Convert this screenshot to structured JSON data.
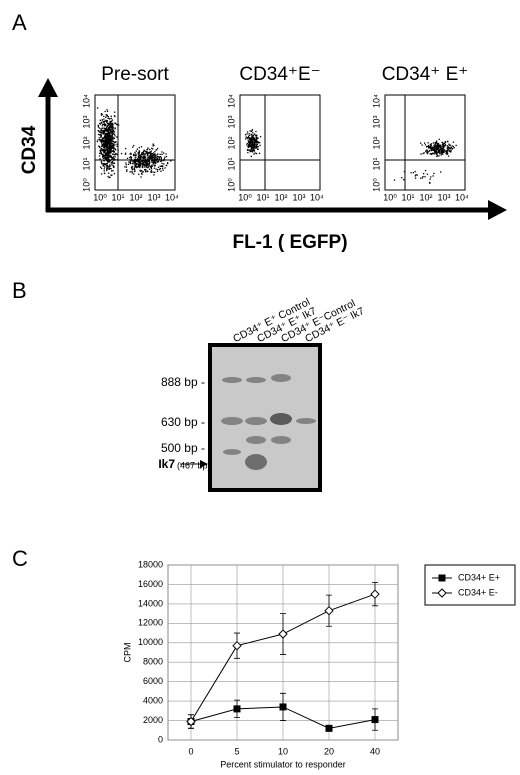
{
  "panel_a": {
    "label": "A",
    "plots": [
      {
        "title": "Pre-sort"
      },
      {
        "title": "CD34⁺E⁻"
      },
      {
        "title": "CD34⁺ E⁺"
      }
    ],
    "tick_labels": [
      "10⁰",
      "10¹",
      "10²",
      "10³",
      "10⁴"
    ],
    "y_axis_label": "CD34",
    "x_axis_label": "FL-1 ( EGFP)"
  },
  "panel_b": {
    "label": "B",
    "lanes": [
      "CD34⁺ E⁺ Control",
      "CD34⁺ E⁺ Ik7",
      "CD34⁺ E⁻Control",
      "CD34⁺ E⁻ Ik7"
    ],
    "markers": [
      "888 bp -",
      "630 bp -",
      "500 bp -"
    ],
    "ik7_label": "Ik7",
    "ik7_size": "(467 bp)"
  },
  "chart_data": {
    "type": "line",
    "panel_label": "C",
    "x_label": "Percent stimulator to responder",
    "y_label": "CPM",
    "categories": [
      "0",
      "5",
      "10",
      "20",
      "40"
    ],
    "ylim": [
      0,
      18000
    ],
    "yticks": [
      0,
      2000,
      4000,
      6000,
      8000,
      10000,
      12000,
      14000,
      16000,
      18000
    ],
    "grid": true,
    "legend": "right",
    "series": [
      {
        "name": "CD34+ E+",
        "color": "#000000",
        "marker": "square",
        "values": [
          1900,
          3200,
          3400,
          1200,
          2100
        ],
        "errors": [
          700,
          900,
          1400,
          200,
          1100
        ]
      },
      {
        "name": "CD34+ E-",
        "color": "#000000",
        "marker": "diamond",
        "values": [
          1900,
          9700,
          10900,
          13300,
          15000
        ],
        "errors": [
          700,
          1300,
          2100,
          1600,
          1200
        ]
      }
    ]
  }
}
